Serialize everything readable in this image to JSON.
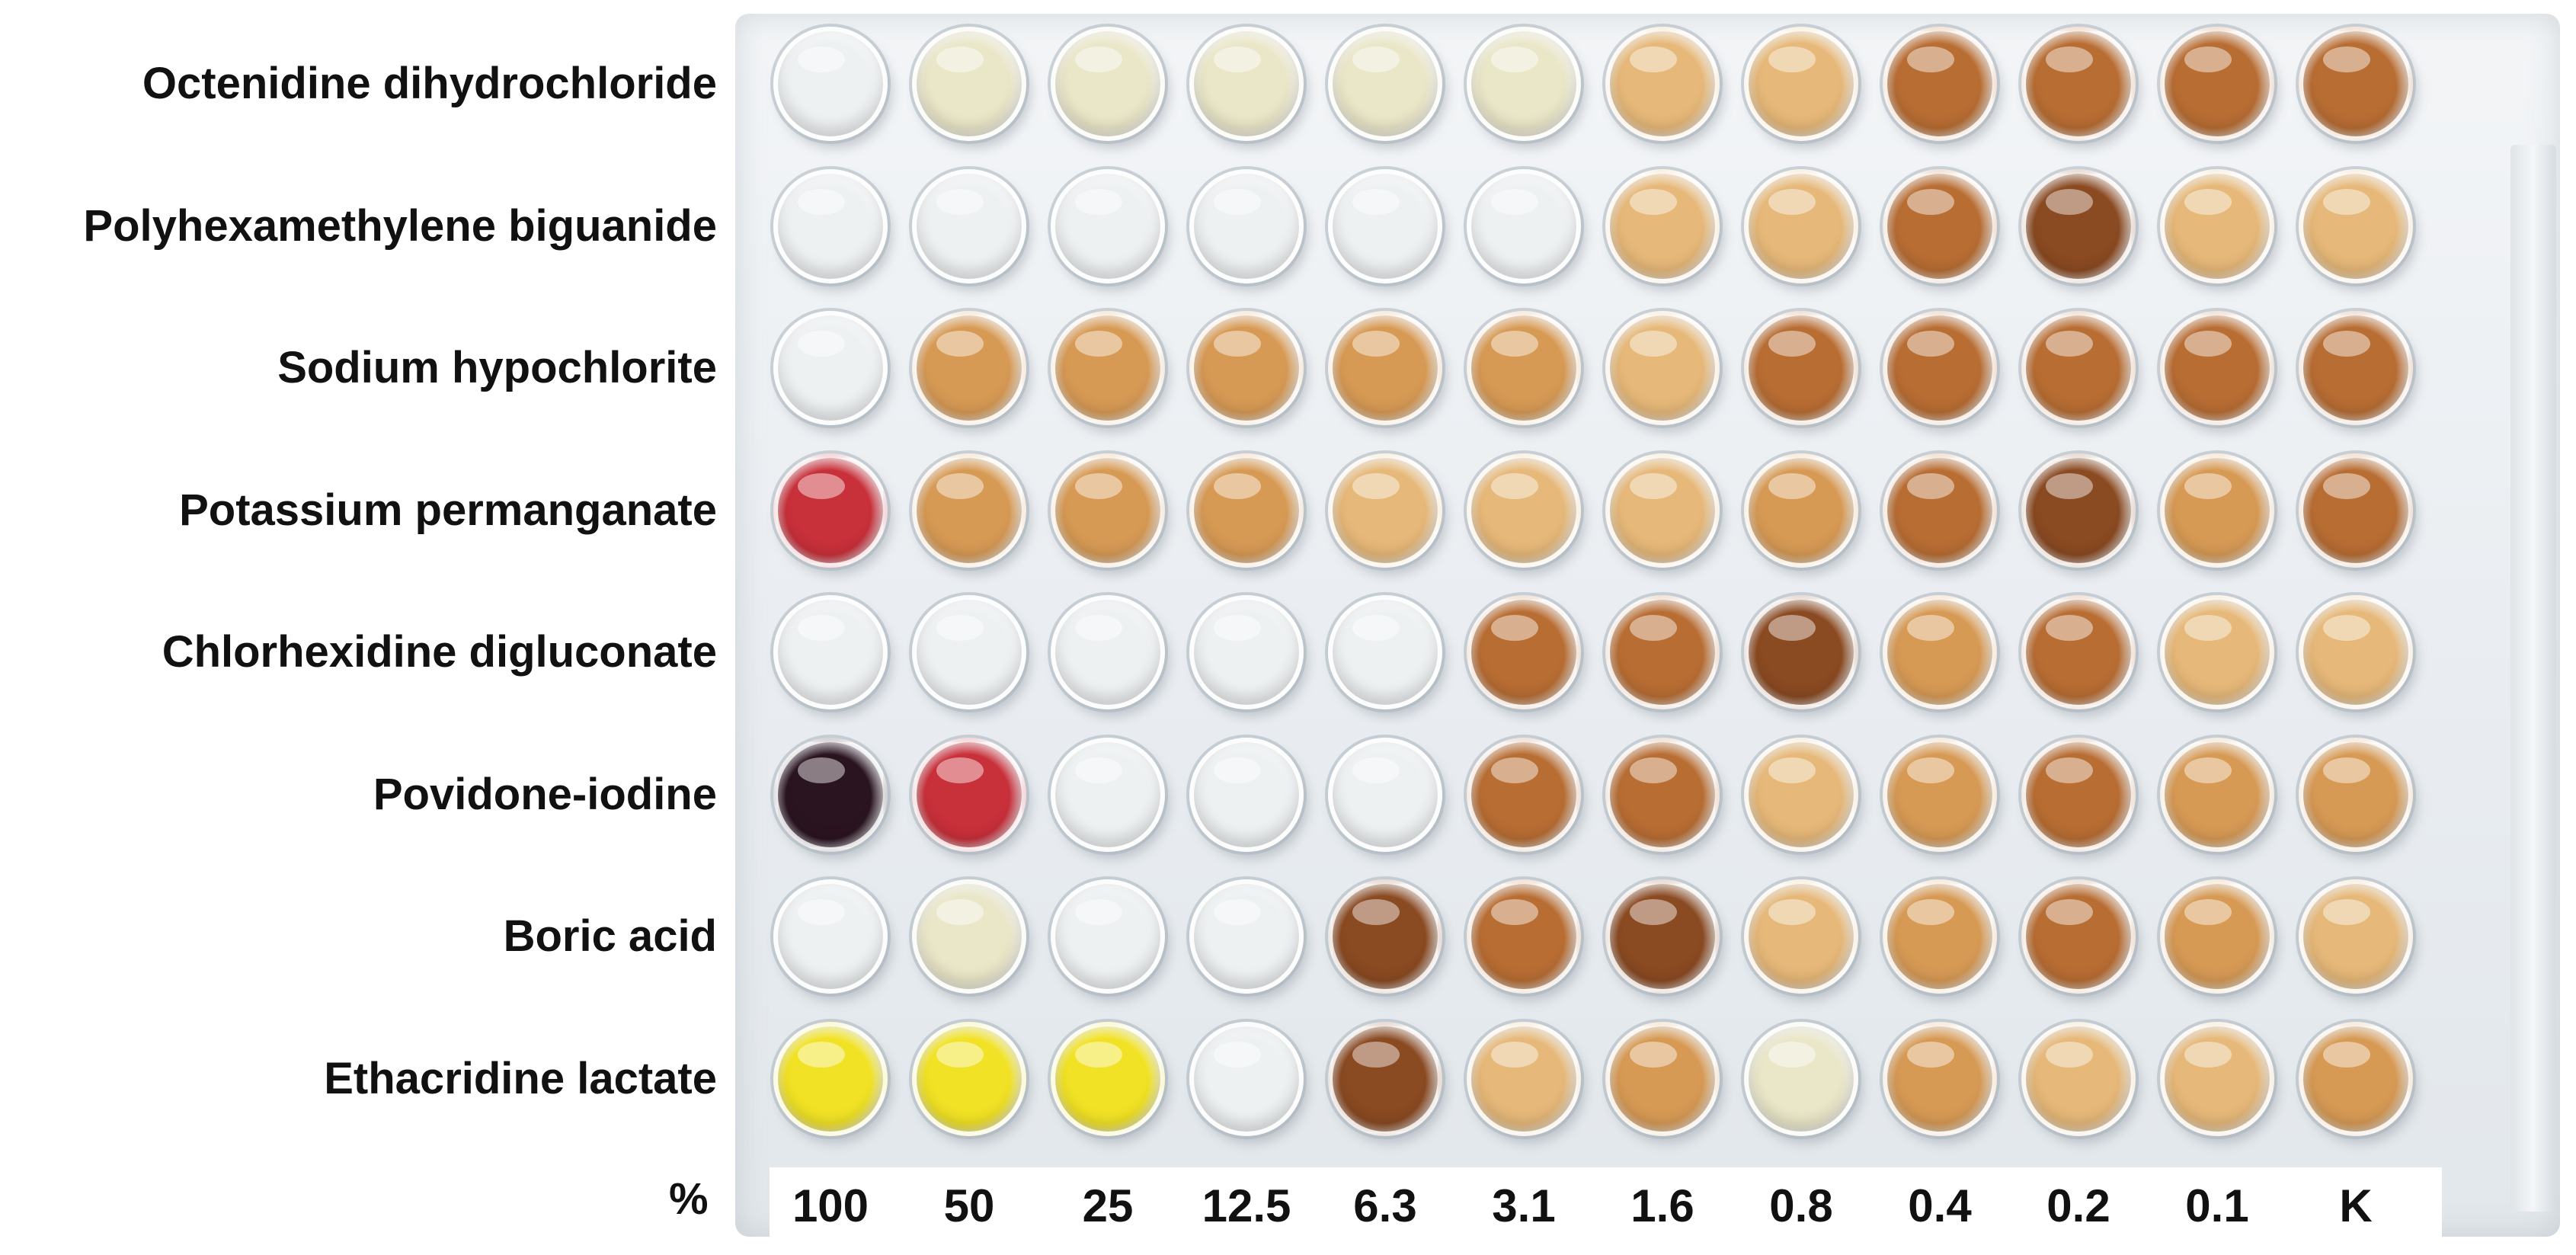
{
  "figure": {
    "rows": [
      "Octenidine dihydrochloride",
      "Polyhexamethylene biguanide",
      "Sodium hypochlorite",
      "Potassium permanganate",
      "Chlorhexidine digluconate",
      "Povidone-iodine",
      "Boric acid",
      "Ethacridine lactate"
    ],
    "axis_symbol": "%",
    "concentrations": [
      "100",
      "50",
      "25",
      "12.5",
      "6.3",
      "3.1",
      "1.6",
      "0.8",
      "0.4",
      "0.2",
      "0.1",
      "K"
    ]
  },
  "palette": {
    "clear": "#eef1f2",
    "pale_yellow": "#eae6c8",
    "light_amber": "#e6b879",
    "amber": "#d79a55",
    "brown": "#b86d33",
    "dark_brown": "#8a4a22",
    "red": "#c8303a",
    "black_purple": "#2a1420",
    "yellow": "#f1e225"
  },
  "well_colors": [
    [
      "clear",
      "pale_yellow",
      "pale_yellow",
      "pale_yellow",
      "pale_yellow",
      "pale_yellow",
      "light_amber",
      "light_amber",
      "brown",
      "brown",
      "brown",
      "brown"
    ],
    [
      "clear",
      "clear",
      "clear",
      "clear",
      "clear",
      "clear",
      "light_amber",
      "light_amber",
      "brown",
      "dark_brown",
      "light_amber",
      "light_amber"
    ],
    [
      "clear",
      "amber",
      "amber",
      "amber",
      "amber",
      "amber",
      "light_amber",
      "brown",
      "brown",
      "brown",
      "brown",
      "brown"
    ],
    [
      "red",
      "amber",
      "amber",
      "amber",
      "light_amber",
      "light_amber",
      "light_amber",
      "amber",
      "brown",
      "dark_brown",
      "amber",
      "brown"
    ],
    [
      "clear",
      "clear",
      "clear",
      "clear",
      "clear",
      "brown",
      "brown",
      "dark_brown",
      "amber",
      "brown",
      "light_amber",
      "light_amber"
    ],
    [
      "black_purple",
      "red",
      "clear",
      "clear",
      "clear",
      "brown",
      "brown",
      "light_amber",
      "amber",
      "brown",
      "amber",
      "amber"
    ],
    [
      "clear",
      "pale_yellow",
      "clear",
      "clear",
      "dark_brown",
      "brown",
      "dark_brown",
      "light_amber",
      "amber",
      "brown",
      "amber",
      "light_amber"
    ],
    [
      "yellow",
      "yellow",
      "yellow",
      "clear",
      "dark_brown",
      "light_amber",
      "amber",
      "pale_yellow",
      "amber",
      "light_amber",
      "light_amber",
      "amber"
    ]
  ]
}
